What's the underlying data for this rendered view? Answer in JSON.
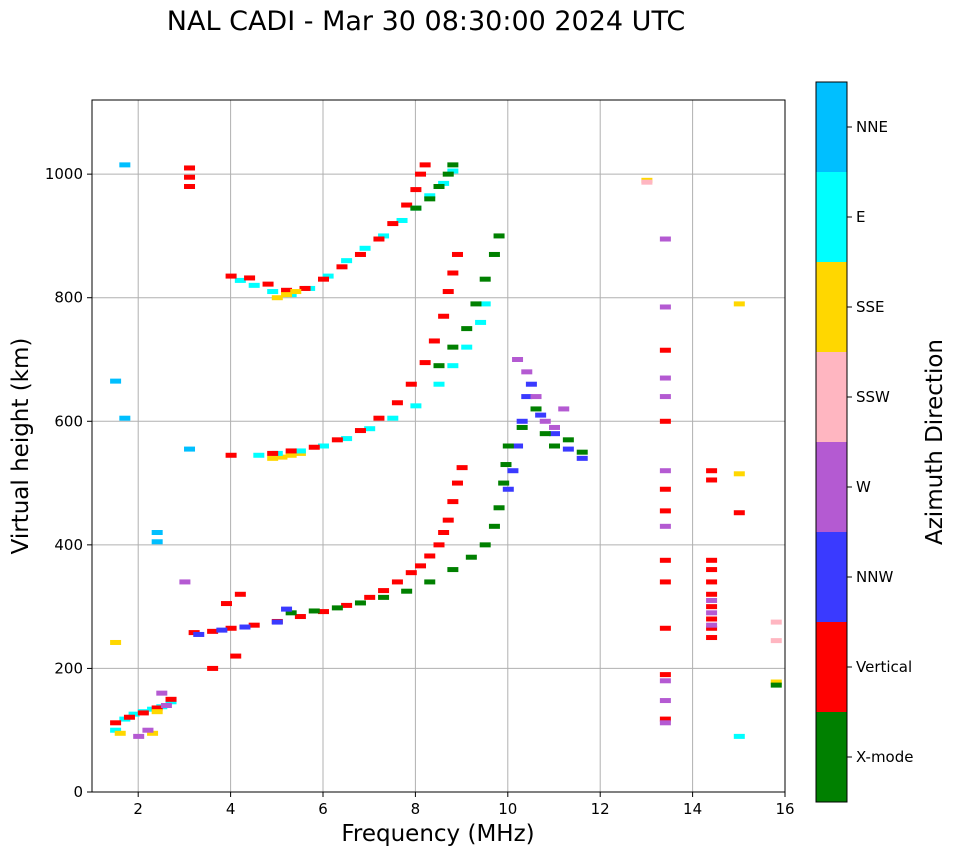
{
  "chart_data": {
    "type": "scatter",
    "title": "NAL CADI - Mar 30 08:30:00 2024 UTC",
    "xlabel": "Frequency (MHz)",
    "ylabel": "Virtual height (km)",
    "xlim": [
      1,
      16
    ],
    "ylim": [
      0,
      1120
    ],
    "xticks": [
      2,
      4,
      6,
      8,
      10,
      12,
      14,
      16
    ],
    "yticks": [
      0,
      200,
      400,
      600,
      800,
      1000
    ],
    "grid": true,
    "colorbar": {
      "label": "Azimuth Direction",
      "categories": [
        {
          "name": "X-mode",
          "color": "#008000"
        },
        {
          "name": "Vertical",
          "color": "#ff0000"
        },
        {
          "name": "NNW",
          "color": "#3a3aff"
        },
        {
          "name": "W",
          "color": "#b45ad2"
        },
        {
          "name": "SSW",
          "color": "#ffb6c1"
        },
        {
          "name": "SSE",
          "color": "#ffd700"
        },
        {
          "name": "E",
          "color": "#00ffff"
        },
        {
          "name": "NNE",
          "color": "#00bfff"
        }
      ]
    },
    "traces": [
      {
        "category": "Vertical",
        "points": [
          [
            3.2,
            258
          ],
          [
            3.6,
            260
          ],
          [
            4.0,
            265
          ],
          [
            4.5,
            270
          ],
          [
            5.0,
            276
          ],
          [
            5.5,
            284
          ],
          [
            6.0,
            292
          ],
          [
            6.5,
            302
          ],
          [
            7.0,
            315
          ],
          [
            7.3,
            326
          ],
          [
            7.6,
            340
          ],
          [
            7.9,
            355
          ],
          [
            8.1,
            366
          ],
          [
            8.3,
            382
          ],
          [
            8.5,
            400
          ],
          [
            8.6,
            420
          ],
          [
            8.7,
            440
          ],
          [
            8.8,
            470
          ],
          [
            8.9,
            500
          ],
          [
            9.0,
            525
          ]
        ]
      },
      {
        "category": "X-mode",
        "points": [
          [
            5.3,
            290
          ],
          [
            5.8,
            293
          ],
          [
            6.3,
            298
          ],
          [
            6.8,
            306
          ],
          [
            7.3,
            315
          ],
          [
            7.8,
            325
          ],
          [
            8.3,
            340
          ],
          [
            8.8,
            360
          ],
          [
            9.2,
            380
          ],
          [
            9.5,
            400
          ],
          [
            9.7,
            430
          ],
          [
            9.8,
            460
          ],
          [
            9.9,
            500
          ],
          [
            9.95,
            530
          ]
        ]
      },
      {
        "category": "NNW",
        "points": [
          [
            3.3,
            255
          ],
          [
            3.8,
            262
          ],
          [
            4.3,
            267
          ],
          [
            5.0,
            275
          ],
          [
            5.2,
            296
          ]
        ]
      },
      {
        "category": "NNW",
        "points": [
          [
            10.0,
            490
          ],
          [
            10.1,
            520
          ],
          [
            10.2,
            560
          ],
          [
            10.3,
            600
          ],
          [
            10.4,
            640
          ],
          [
            10.5,
            660
          ],
          [
            10.7,
            610
          ],
          [
            11.0,
            580
          ],
          [
            11.3,
            555
          ],
          [
            11.6,
            540
          ]
        ]
      },
      {
        "category": "W",
        "points": [
          [
            10.2,
            700
          ],
          [
            10.4,
            680
          ],
          [
            10.6,
            640
          ],
          [
            10.8,
            600
          ],
          [
            11.0,
            590
          ],
          [
            11.2,
            620
          ]
        ]
      },
      {
        "category": "X-mode",
        "points": [
          [
            10.0,
            560
          ],
          [
            10.3,
            590
          ],
          [
            10.6,
            620
          ],
          [
            10.8,
            580
          ],
          [
            11.0,
            560
          ],
          [
            11.3,
            570
          ],
          [
            11.6,
            550
          ]
        ]
      },
      {
        "category": "SSE",
        "points": [
          [
            4.9,
            540
          ],
          [
            5.1,
            542
          ],
          [
            5.3,
            545
          ],
          [
            5.5,
            548
          ]
        ]
      },
      {
        "category": "E",
        "points": [
          [
            4.6,
            545
          ],
          [
            5.0,
            548
          ],
          [
            5.5,
            552
          ],
          [
            6.0,
            560
          ],
          [
            6.5,
            572
          ],
          [
            7.0,
            588
          ],
          [
            7.5,
            605
          ],
          [
            8.0,
            625
          ],
          [
            8.5,
            660
          ],
          [
            8.8,
            690
          ],
          [
            9.1,
            720
          ],
          [
            9.4,
            760
          ],
          [
            9.5,
            790
          ]
        ]
      },
      {
        "category": "Vertical",
        "points": [
          [
            4.9,
            548
          ],
          [
            5.3,
            552
          ],
          [
            5.8,
            558
          ],
          [
            6.3,
            570
          ],
          [
            6.8,
            585
          ],
          [
            7.2,
            605
          ],
          [
            7.6,
            630
          ],
          [
            7.9,
            660
          ],
          [
            8.2,
            695
          ],
          [
            8.4,
            730
          ],
          [
            8.6,
            770
          ],
          [
            8.7,
            810
          ],
          [
            8.8,
            840
          ],
          [
            8.9,
            870
          ]
        ]
      },
      {
        "category": "X-mode",
        "points": [
          [
            8.5,
            690
          ],
          [
            8.8,
            720
          ],
          [
            9.1,
            750
          ],
          [
            9.3,
            790
          ],
          [
            9.5,
            830
          ],
          [
            9.7,
            870
          ],
          [
            9.8,
            900
          ]
        ]
      },
      {
        "category": "E",
        "points": [
          [
            4.2,
            828
          ],
          [
            4.5,
            820
          ],
          [
            4.9,
            810
          ],
          [
            5.3,
            805
          ],
          [
            5.7,
            815
          ],
          [
            6.1,
            835
          ],
          [
            6.5,
            860
          ],
          [
            6.9,
            880
          ],
          [
            7.3,
            900
          ],
          [
            7.7,
            925
          ],
          [
            8.0,
            945
          ],
          [
            8.3,
            965
          ],
          [
            8.6,
            985
          ],
          [
            8.8,
            1005
          ]
        ]
      },
      {
        "category": "Vertical",
        "points": [
          [
            4.0,
            835
          ],
          [
            4.4,
            832
          ],
          [
            4.8,
            822
          ],
          [
            5.2,
            812
          ],
          [
            5.6,
            815
          ],
          [
            6.0,
            830
          ],
          [
            6.4,
            850
          ],
          [
            6.8,
            870
          ],
          [
            7.2,
            895
          ],
          [
            7.5,
            920
          ],
          [
            7.8,
            950
          ],
          [
            8.0,
            975
          ],
          [
            8.1,
            1000
          ],
          [
            8.2,
            1015
          ]
        ]
      },
      {
        "category": "SSE",
        "points": [
          [
            5.0,
            800
          ],
          [
            5.2,
            805
          ],
          [
            5.4,
            810
          ]
        ]
      },
      {
        "category": "X-mode",
        "points": [
          [
            8.0,
            945
          ],
          [
            8.3,
            960
          ],
          [
            8.5,
            980
          ],
          [
            8.7,
            1000
          ],
          [
            8.8,
            1015
          ]
        ]
      },
      {
        "category": "E",
        "points": [
          [
            1.5,
            100
          ],
          [
            1.7,
            118
          ],
          [
            1.9,
            126
          ],
          [
            2.1,
            130
          ],
          [
            2.3,
            134
          ],
          [
            2.5,
            138
          ],
          [
            2.7,
            146
          ]
        ]
      },
      {
        "category": "Vertical",
        "points": [
          [
            1.5,
            112
          ],
          [
            1.8,
            121
          ],
          [
            2.1,
            128
          ],
          [
            2.4,
            136
          ],
          [
            2.7,
            150
          ]
        ]
      },
      {
        "category": "SSE",
        "points": [
          [
            1.5,
            242
          ],
          [
            1.6,
            95
          ],
          [
            2.3,
            95
          ],
          [
            2.4,
            130
          ]
        ]
      },
      {
        "category": "W",
        "points": [
          [
            2.0,
            90
          ],
          [
            2.2,
            100
          ],
          [
            2.5,
            160
          ],
          [
            2.6,
            140
          ],
          [
            3.0,
            340
          ]
        ]
      },
      {
        "category": "NNE",
        "points": [
          [
            1.7,
            1015
          ],
          [
            1.5,
            665
          ],
          [
            1.7,
            605
          ],
          [
            2.4,
            405
          ],
          [
            2.4,
            420
          ],
          [
            3.1,
            555
          ]
        ]
      },
      {
        "category": "Vertical",
        "points": [
          [
            3.1,
            995
          ],
          [
            3.1,
            1010
          ],
          [
            3.1,
            980
          ],
          [
            4.0,
            545
          ],
          [
            4.2,
            320
          ],
          [
            3.9,
            305
          ],
          [
            3.6,
            200
          ],
          [
            4.1,
            220
          ]
        ]
      },
      {
        "category": "Vertical",
        "points": [
          [
            13.4,
            715
          ],
          [
            13.4,
            600
          ],
          [
            13.4,
            490
          ],
          [
            13.4,
            455
          ],
          [
            13.4,
            375
          ],
          [
            13.4,
            340
          ],
          [
            13.4,
            265
          ],
          [
            13.4,
            190
          ],
          [
            13.4,
            118
          ]
        ]
      },
      {
        "category": "W",
        "points": [
          [
            13.4,
            895
          ],
          [
            13.4,
            785
          ],
          [
            13.4,
            670
          ],
          [
            13.4,
            640
          ],
          [
            13.4,
            520
          ],
          [
            13.4,
            430
          ],
          [
            13.4,
            180
          ],
          [
            13.4,
            148
          ],
          [
            13.4,
            112
          ]
        ]
      },
      {
        "category": "Vertical",
        "points": [
          [
            14.4,
            375
          ],
          [
            14.4,
            360
          ],
          [
            14.4,
            340
          ],
          [
            14.4,
            320
          ],
          [
            14.4,
            300
          ],
          [
            14.4,
            280
          ],
          [
            14.4,
            265
          ],
          [
            14.4,
            250
          ],
          [
            14.4,
            520
          ],
          [
            14.4,
            505
          ],
          [
            15.0,
            452
          ]
        ]
      },
      {
        "category": "W",
        "points": [
          [
            14.4,
            310
          ],
          [
            14.4,
            290
          ],
          [
            14.4,
            270
          ]
        ]
      },
      {
        "category": "SSE",
        "points": [
          [
            15.0,
            790
          ],
          [
            15.0,
            515
          ],
          [
            13.0,
            990
          ],
          [
            15.8,
            178
          ]
        ]
      },
      {
        "category": "SSW",
        "points": [
          [
            15.8,
            275
          ],
          [
            15.8,
            245
          ],
          [
            13.0,
            987
          ]
        ]
      },
      {
        "category": "X-mode",
        "points": [
          [
            15.8,
            173
          ]
        ]
      },
      {
        "category": "E",
        "points": [
          [
            15.0,
            90
          ]
        ]
      }
    ]
  }
}
